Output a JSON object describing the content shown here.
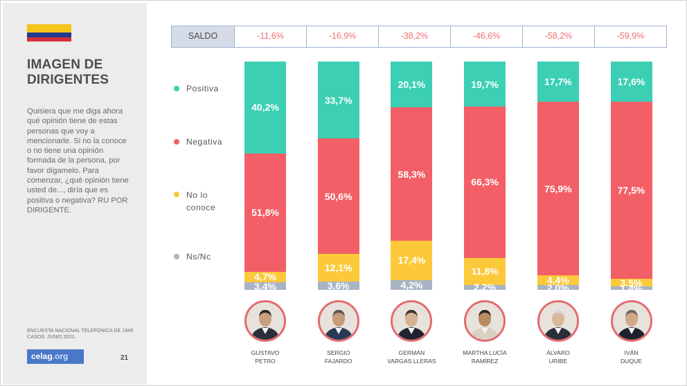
{
  "sidebar": {
    "title_line1": "IMAGEN DE",
    "title_line2": "DIRIGENTES",
    "description": "Quisiera que me diga ahora qué opinión tiene de estas personas que voy a mencionarle. Si no la conoce o no tiene una opinión formada de la persona, por favor dígamelo. Para comenzar, ¿qué opinión tiene usted de..., diría que es positiva o negativa? RU POR DIRIGENTE.",
    "source": "ENCUESTA NACIONAL TELEFÓNICA DE 1945 CASOS. JUNIO 2021.",
    "logo_main": "celag",
    "logo_suffix": ".org",
    "page_number": "21",
    "flag_colors": [
      "#f5c518",
      "#1f3c8f",
      "#d62f3c"
    ]
  },
  "saldo": {
    "header": "SALDO",
    "values": [
      "-11,6%",
      "-16,9%",
      "-38,2%",
      "-46,6%",
      "-58,2%",
      "-59,9%"
    ]
  },
  "legend": [
    {
      "label": "Positiva",
      "color": "#3ccfb4"
    },
    {
      "label": "Negativa",
      "color": "#f25f66"
    },
    {
      "label": "No lo conoce",
      "color": "#fcc93a"
    },
    {
      "label": "Ns/Nc",
      "color": "#a8b4c4"
    }
  ],
  "chart_data": {
    "type": "bar",
    "stacked": true,
    "categories": [
      {
        "line1": "GUSTAVO",
        "line2": "PETRO"
      },
      {
        "line1": "SERGIO",
        "line2": "FAJARDO"
      },
      {
        "line1": "GERMÁN",
        "line2": "VARGAS LLERAS"
      },
      {
        "line1": "MARTHA LUCÍA",
        "line2": "RAMÍREZ"
      },
      {
        "line1": "ÁLVARO",
        "line2": "URIBE"
      },
      {
        "line1": "IVÁN",
        "line2": "DUQUE"
      }
    ],
    "series": [
      {
        "name": "Positiva",
        "color": "#3ccfb4",
        "values": [
          40.2,
          33.7,
          20.1,
          19.7,
          17.7,
          17.6
        ],
        "labels": [
          "40,2%",
          "33,7%",
          "20,1%",
          "19,7%",
          "17,7%",
          "17,6%"
        ]
      },
      {
        "name": "Negativa",
        "color": "#f25f66",
        "values": [
          51.8,
          50.6,
          58.3,
          66.3,
          75.9,
          77.5
        ],
        "labels": [
          "51,8%",
          "50,6%",
          "58,3%",
          "66,3%",
          "75,9%",
          "77,5%"
        ]
      },
      {
        "name": "No lo conoce",
        "color": "#fcc93a",
        "values": [
          4.7,
          12.1,
          17.4,
          11.8,
          4.4,
          3.5
        ],
        "labels": [
          "4,7%",
          "12,1%",
          "17,4%",
          "11,8%",
          "4,4%",
          "3,5%"
        ]
      },
      {
        "name": "Ns/Nc",
        "color": "#a8b4c4",
        "values": [
          3.4,
          3.6,
          4.2,
          2.2,
          2.0,
          1.4
        ],
        "labels": [
          "3,4%",
          "3,6%",
          "4,2%",
          "2,2%",
          "2,0%",
          "1,4%"
        ]
      }
    ],
    "ylim": [
      0,
      100
    ]
  }
}
